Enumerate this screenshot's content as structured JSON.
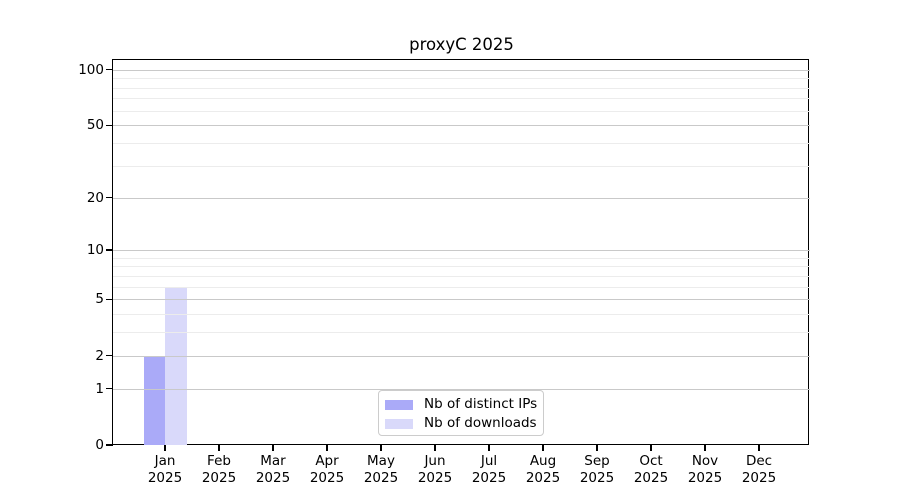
{
  "chart_data": {
    "type": "bar",
    "title": "proxyC 2025",
    "x_axis": {
      "months": [
        "Jan",
        "Feb",
        "Mar",
        "Apr",
        "May",
        "Jun",
        "Jul",
        "Aug",
        "Sep",
        "Oct",
        "Nov",
        "Dec"
      ],
      "year": "2025"
    },
    "y_axis": {
      "scale": "log(1+y)",
      "major_ticks": [
        0,
        1,
        2,
        5,
        10,
        20,
        50,
        100
      ],
      "minor_ticks": [
        3,
        4,
        6,
        7,
        8,
        9,
        30,
        40,
        60,
        70,
        80,
        90
      ],
      "max": 113
    },
    "series": [
      {
        "name": "Nb of distinct IPs",
        "color": "#aaaaf8",
        "values": [
          2,
          0,
          0,
          0,
          0,
          0,
          0,
          0,
          0,
          0,
          0,
          0
        ]
      },
      {
        "name": "Nb of downloads",
        "color": "#d9d9fa",
        "values": [
          6,
          0,
          0,
          0,
          0,
          0,
          0,
          0,
          0,
          0,
          0,
          0
        ]
      }
    ],
    "legend": {
      "location": "lower center inside plot"
    },
    "grid": true,
    "colors": {
      "major_grid": "#c9c9c9",
      "minor_grid": "#ececec",
      "spine": "#000000",
      "background": "#ffffff"
    }
  }
}
